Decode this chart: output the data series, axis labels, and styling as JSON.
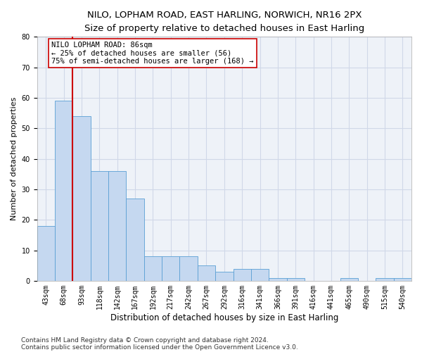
{
  "title1": "NILO, LOPHAM ROAD, EAST HARLING, NORWICH, NR16 2PX",
  "title2": "Size of property relative to detached houses in East Harling",
  "xlabel": "Distribution of detached houses by size in East Harling",
  "ylabel": "Number of detached properties",
  "categories": [
    "43sqm",
    "68sqm",
    "93sqm",
    "118sqm",
    "142sqm",
    "167sqm",
    "192sqm",
    "217sqm",
    "242sqm",
    "267sqm",
    "292sqm",
    "316sqm",
    "341sqm",
    "366sqm",
    "391sqm",
    "416sqm",
    "441sqm",
    "465sqm",
    "490sqm",
    "515sqm",
    "540sqm"
  ],
  "values": [
    18,
    59,
    54,
    36,
    36,
    27,
    8,
    8,
    8,
    5,
    3,
    4,
    4,
    1,
    1,
    0,
    0,
    1,
    0,
    1,
    1
  ],
  "bar_color": "#c5d8f0",
  "bar_edge_color": "#5a9fd4",
  "grid_color": "#d0d8e8",
  "background_color": "#eef2f8",
  "vline_color": "#cc0000",
  "annotation_line1": "NILO LOPHAM ROAD: 86sqm",
  "annotation_line2": "← 25% of detached houses are smaller (56)",
  "annotation_line3": "75% of semi-detached houses are larger (168) →",
  "annotation_box_color": "#ffffff",
  "annotation_border_color": "#cc0000",
  "ylim": [
    0,
    80
  ],
  "yticks": [
    0,
    10,
    20,
    30,
    40,
    50,
    60,
    70,
    80
  ],
  "footer1": "Contains HM Land Registry data © Crown copyright and database right 2024.",
  "footer2": "Contains public sector information licensed under the Open Government Licence v3.0.",
  "title1_fontsize": 9.5,
  "title2_fontsize": 9.0,
  "xlabel_fontsize": 8.5,
  "ylabel_fontsize": 8.0,
  "tick_fontsize": 7.0,
  "annotation_fontsize": 7.5,
  "footer_fontsize": 6.5
}
